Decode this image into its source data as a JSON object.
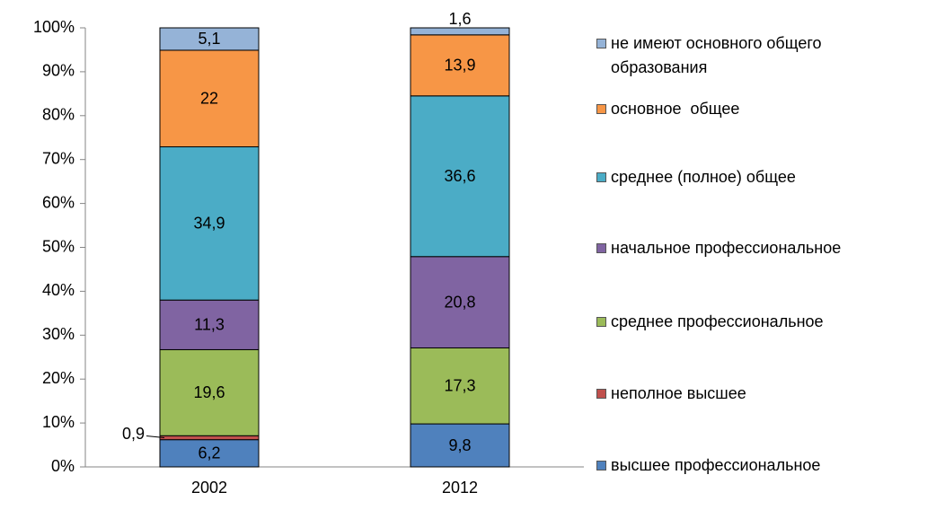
{
  "chart_data": {
    "type": "stacked-bar",
    "categories": [
      "2002",
      "2012"
    ],
    "ylim": [
      0,
      100
    ],
    "yticks": [
      {
        "value": 0,
        "label": "0%"
      },
      {
        "value": 10,
        "label": "10%"
      },
      {
        "value": 20,
        "label": "20%"
      },
      {
        "value": 30,
        "label": "30%"
      },
      {
        "value": 40,
        "label": "40%"
      },
      {
        "value": 50,
        "label": "50%"
      },
      {
        "value": 60,
        "label": "60%"
      },
      {
        "value": 70,
        "label": "70%"
      },
      {
        "value": 80,
        "label": "80%"
      },
      {
        "value": 90,
        "label": "90%"
      },
      {
        "value": 100,
        "label": "100%"
      }
    ],
    "legend": "right",
    "series": [
      {
        "name": "высшее профессиональное",
        "color": "#4f81bd",
        "values": [
          6.2,
          9.8
        ],
        "value_labels": [
          "6,2",
          "9,8"
        ]
      },
      {
        "name": "неполное высшее",
        "color": "#c0504d",
        "values": [
          0.9,
          null
        ],
        "value_labels": [
          "0,9",
          null
        ]
      },
      {
        "name": "среднее профессиональное",
        "color": "#9bbb59",
        "values": [
          19.6,
          17.3
        ],
        "value_labels": [
          "19,6",
          "17,3"
        ]
      },
      {
        "name": "начальное профессиональное",
        "color": "#8064a2",
        "values": [
          11.3,
          20.8
        ],
        "value_labels": [
          "11,3",
          "20,8"
        ]
      },
      {
        "name": "среднее (полное) общее",
        "color": "#4bacc6",
        "values": [
          34.9,
          36.6
        ],
        "value_labels": [
          "34,9",
          "36,6"
        ]
      },
      {
        "name": "основное  общее",
        "color": "#f79646",
        "values": [
          22,
          13.9
        ],
        "value_labels": [
          "22",
          "13,9"
        ]
      },
      {
        "name": "не имеют основного общего образования",
        "color": "#95b3d7",
        "values": [
          5.1,
          1.6
        ],
        "value_labels": [
          "5,1",
          "1,6"
        ]
      }
    ]
  }
}
